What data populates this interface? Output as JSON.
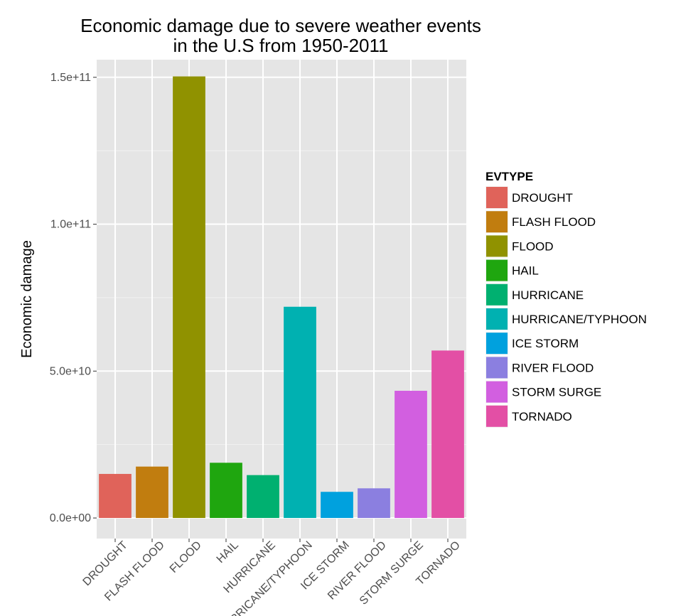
{
  "chart_data": {
    "type": "bar",
    "title": "Economic damage due to severe weather events",
    "subtitle": "in the U.S from 1950-2011",
    "xlabel": "",
    "ylabel": "Economic damage",
    "ylim": [
      -7000000000,
      156000000000
    ],
    "yticks": [
      0,
      50000000000,
      100000000000,
      150000000000
    ],
    "ytick_labels": [
      "0.0e+00",
      "5.0e+10",
      "1.0e+11",
      "1.5e+11"
    ],
    "categories": [
      "DROUGHT",
      "FLASH FLOOD",
      "FLOOD",
      "HAIL",
      "HURRICANE",
      "HURRICANE/TYPHOON",
      "ICE STORM",
      "RIVER FLOOD",
      "STORM SURGE",
      "TORNADO"
    ],
    "values": [
      15000000000,
      17500000000,
      150300000000,
      18800000000,
      14600000000,
      71900000000,
      8900000000,
      10100000000,
      43300000000,
      57000000000
    ],
    "colors": [
      "#e0635a",
      "#c17d0f",
      "#909200",
      "#1fa60f",
      "#00b070",
      "#00b1b1",
      "#00a1de",
      "#8b7fe0",
      "#d25fe0",
      "#e34fa5"
    ],
    "grid": true,
    "legend": {
      "title": "EVTYPE",
      "placement": "right",
      "entries": [
        "DROUGHT",
        "FLASH FLOOD",
        "FLOOD",
        "HAIL",
        "HURRICANE",
        "HURRICANE/TYPHOON",
        "ICE STORM",
        "RIVER FLOOD",
        "STORM SURGE",
        "TORNADO"
      ]
    },
    "panel_background": "#e5e5e5",
    "grid_color": "#ffffff"
  }
}
